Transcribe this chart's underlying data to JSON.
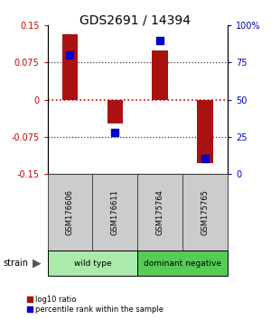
{
  "title": "GDS2691 / 14394",
  "samples": [
    "GSM176606",
    "GSM176611",
    "GSM175764",
    "GSM175765"
  ],
  "log10_ratio": [
    0.133,
    -0.048,
    0.1,
    -0.128
  ],
  "percentile_rank": [
    80,
    28,
    90,
    10
  ],
  "ylim_left": [
    -0.15,
    0.15
  ],
  "yticks_left": [
    -0.15,
    -0.075,
    0,
    0.075,
    0.15
  ],
  "yticks_right": [
    0,
    25,
    50,
    75,
    100
  ],
  "groups": [
    {
      "label": "wild type",
      "samples": [
        0,
        1
      ],
      "color": "#AAEAAA"
    },
    {
      "label": "dominant negative",
      "samples": [
        2,
        3
      ],
      "color": "#55CC55"
    }
  ],
  "bar_color": "#AA1111",
  "dot_color": "#0000CC",
  "bar_width": 0.35,
  "dot_size": 40,
  "strain_label": "strain",
  "left_tick_color": "#CC0000",
  "right_tick_color": "#0000BB",
  "zero_line_color": "#CC0000",
  "dotted_line_color": "#333333",
  "sample_box_color": "#CCCCCC",
  "sample_box_edge": "#444444"
}
